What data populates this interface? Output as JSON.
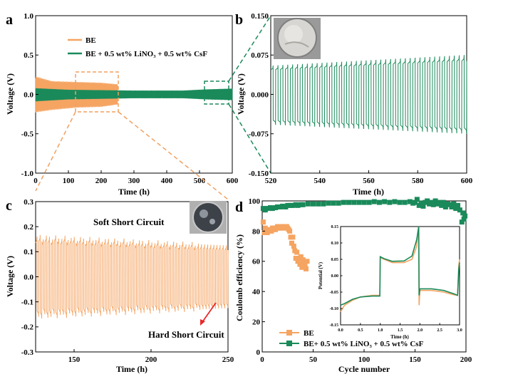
{
  "colors": {
    "be": "#f5a462",
    "add": "#1a8a5a",
    "axis": "#000000",
    "arrow": "#e8282a"
  },
  "figure": {
    "panel_a": {
      "label": "a",
      "icons": [
        "coin-photo-icon"
      ],
      "chart_data": {
        "type": "line",
        "xlabel": "Time (h)",
        "ylabel": "Voltage (V)",
        "xlim": [
          0,
          600
        ],
        "ylim": [
          -1.0,
          1.0
        ],
        "xticks": [
          "0",
          "100",
          "200",
          "300",
          "400",
          "500",
          "600"
        ],
        "yticks": [
          "-1.0",
          "-0.5",
          "0.0",
          "0.5",
          "1.0"
        ],
        "legend_position": "top-left",
        "series": [
          {
            "name": "BE",
            "color": "#f5a462",
            "x_range": [
              0,
              250
            ],
            "y_env": [
              [
                0,
                0.23,
                -0.23
              ],
              [
                50,
                0.17,
                -0.2
              ],
              [
                125,
                0.16,
                -0.17
              ],
              [
                200,
                0.15,
                -0.16
              ],
              [
                250,
                0.13,
                -0.13
              ]
            ]
          },
          {
            "name": "BE + 0.5 wt% LiNO₃ + 0.5 wt% CsF",
            "color": "#1a8a5a",
            "x_range": [
              0,
              600
            ],
            "y_env": [
              [
                0,
                0.08,
                -0.09
              ],
              [
                100,
                0.06,
                -0.065
              ],
              [
                300,
                0.05,
                -0.05
              ],
              [
                450,
                0.05,
                -0.05
              ],
              [
                520,
                0.065,
                -0.065
              ],
              [
                600,
                0.075,
                -0.075
              ]
            ]
          }
        ]
      }
    },
    "panel_b": {
      "label": "b",
      "chart_data": {
        "type": "line",
        "xlabel": "Time (h)",
        "ylabel": "Voltage (V)",
        "xlim": [
          520,
          600
        ],
        "ylim": [
          -0.15,
          0.15
        ],
        "xticks": [
          "520",
          "540",
          "560",
          "580",
          "600"
        ],
        "yticks": [
          "-0.150",
          "-0.075",
          "0.000",
          "0.075",
          "0.150"
        ],
        "series": [
          {
            "color": "#1a8a5a",
            "cycles": 40,
            "upper_start": 0.055,
            "upper_end": 0.075,
            "lower_start": -0.058,
            "lower_end": -0.075
          }
        ]
      }
    },
    "panel_c": {
      "label": "c",
      "annotations": {
        "soft": "Soft Short Circuit",
        "hard": "Hard Short Circuit"
      },
      "chart_data": {
        "type": "line",
        "xlabel": "Time (h)",
        "ylabel": "Voltage (V)",
        "xlim": [
          125,
          250
        ],
        "ylim": [
          -0.3,
          0.3
        ],
        "xticks": [
          "150",
          "200",
          "250"
        ],
        "yticks": [
          "-0.3",
          "-0.2",
          "-0.1",
          "0.0",
          "0.1",
          "0.2",
          "0.3"
        ],
        "series": [
          {
            "color": "#f5a462",
            "cycles": 62,
            "upper_start": 0.16,
            "upper_end": 0.125,
            "lower_start": -0.16,
            "lower_end": -0.125,
            "hard_short_x": 230
          }
        ]
      }
    },
    "panel_d": {
      "label": "d",
      "chart_data": {
        "type": "scatter",
        "xlabel": "Cycle number",
        "ylabel": "Coulomb efficiency (%)",
        "xlim": [
          0,
          200
        ],
        "ylim": [
          0,
          100
        ],
        "xticks": [
          "0",
          "50",
          "100",
          "150",
          "200"
        ],
        "yticks": [
          "0",
          "20",
          "40",
          "60",
          "80",
          "100"
        ],
        "legend_position": "bottom-left",
        "series": [
          {
            "name": "BE",
            "color": "#f5a462",
            "points": [
              [
                1,
                86
              ],
              [
                2,
                79
              ],
              [
                3,
                82
              ],
              [
                4,
                80
              ],
              [
                5,
                79
              ],
              [
                6,
                81
              ],
              [
                7,
                80
              ],
              [
                8,
                80
              ],
              [
                9,
                80
              ],
              [
                10,
                82
              ],
              [
                11,
                81
              ],
              [
                12,
                82
              ],
              [
                13,
                81
              ],
              [
                14,
                82
              ],
              [
                15,
                83
              ],
              [
                16,
                82
              ],
              [
                17,
                82
              ],
              [
                18,
                83
              ],
              [
                19,
                82
              ],
              [
                20,
                83
              ],
              [
                21,
                83
              ],
              [
                22,
                82
              ],
              [
                23,
                83
              ],
              [
                24,
                83
              ],
              [
                25,
                82
              ],
              [
                26,
                81
              ],
              [
                27,
                80
              ],
              [
                28,
                76
              ],
              [
                29,
                72
              ],
              [
                30,
                76
              ],
              [
                31,
                70
              ],
              [
                32,
                67
              ],
              [
                33,
                62
              ],
              [
                34,
                66
              ],
              [
                35,
                60
              ],
              [
                36,
                62
              ],
              [
                37,
                58
              ],
              [
                38,
                63
              ],
              [
                39,
                56
              ],
              [
                40,
                61
              ],
              [
                41,
                58
              ],
              [
                42,
                57
              ],
              [
                43,
                55
              ],
              [
                44,
                60
              ]
            ]
          },
          {
            "name": "BE+ 0.5 wt% LiNO₃ + 0.5 wt% CsF",
            "color": "#1a8a5a",
            "points": [
              [
                1,
                95
              ],
              [
                3,
                94
              ],
              [
                5,
                95
              ],
              [
                8,
                95.5
              ],
              [
                10,
                95
              ],
              [
                13,
                95.5
              ],
              [
                15,
                96
              ],
              [
                18,
                96
              ],
              [
                20,
                96.5
              ],
              [
                23,
                96
              ],
              [
                25,
                97
              ],
              [
                28,
                97
              ],
              [
                30,
                97
              ],
              [
                33,
                97.5
              ],
              [
                35,
                97
              ],
              [
                38,
                97.5
              ],
              [
                40,
                97.5
              ],
              [
                45,
                98
              ],
              [
                50,
                98
              ],
              [
                55,
                98
              ],
              [
                60,
                98
              ],
              [
                65,
                98.5
              ],
              [
                70,
                98.5
              ],
              [
                75,
                98.5
              ],
              [
                80,
                99
              ],
              [
                85,
                99
              ],
              [
                90,
                99
              ],
              [
                95,
                99
              ],
              [
                100,
                99
              ],
              [
                105,
                99
              ],
              [
                110,
                99.5
              ],
              [
                115,
                99
              ],
              [
                120,
                99.5
              ],
              [
                125,
                99
              ],
              [
                130,
                99.5
              ],
              [
                135,
                99
              ],
              [
                140,
                99
              ],
              [
                145,
                99.5
              ],
              [
                148,
                98.5
              ],
              [
                150,
                99
              ],
              [
                152,
                101
              ],
              [
                154,
                97
              ],
              [
                156,
                98.5
              ],
              [
                158,
                96.5
              ],
              [
                160,
                99
              ],
              [
                162,
                100
              ],
              [
                164,
                98
              ],
              [
                166,
                99
              ],
              [
                168,
                97.5
              ],
              [
                170,
                100
              ],
              [
                172,
                98
              ],
              [
                174,
                99
              ],
              [
                176,
                97
              ],
              [
                178,
                99
              ],
              [
                180,
                96
              ],
              [
                182,
                98
              ],
              [
                184,
                97.5
              ],
              [
                186,
                96
              ],
              [
                188,
                98
              ],
              [
                190,
                95
              ],
              [
                192,
                97
              ],
              [
                194,
                94
              ],
              [
                196,
                86
              ],
              [
                197,
                92
              ],
              [
                198,
                88
              ],
              [
                199,
                90
              ]
            ]
          }
        ]
      },
      "inset": {
        "chart_data": {
          "type": "line",
          "xlabel": "Time (h)",
          "ylabel": "Potential (V)",
          "xlim": [
            0,
            3.0
          ],
          "ylim": [
            -0.15,
            0.15
          ],
          "xticks": [
            "0.0",
            "0.5",
            "1.0",
            "1.5",
            "2.0",
            "2.5",
            "3.0"
          ],
          "yticks": [
            "-0.15",
            "-0.10",
            "-0.05",
            "0.00",
            "0.05",
            "0.10",
            "0.15"
          ],
          "series": [
            {
              "color": "#f5a462",
              "points": [
                [
                  0,
                  -0.11
                ],
                [
                  0.1,
                  -0.09
                ],
                [
                  0.3,
                  -0.075
                ],
                [
                  0.5,
                  -0.065
                ],
                [
                  0.8,
                  -0.06
                ],
                [
                  0.99,
                  -0.06
                ],
                [
                  1.0,
                  0.055
                ],
                [
                  1.1,
                  0.05
                ],
                [
                  1.3,
                  0.04
                ],
                [
                  1.6,
                  0.04
                ],
                [
                  1.8,
                  0.05
                ],
                [
                  1.92,
                  0.09
                ],
                [
                  1.97,
                  0.15
                ],
                [
                  1.98,
                  -0.09
                ],
                [
                  2.0,
                  -0.045
                ],
                [
                  2.3,
                  -0.045
                ],
                [
                  2.6,
                  -0.05
                ],
                [
                  2.85,
                  -0.058
                ],
                [
                  2.95,
                  -0.06
                ],
                [
                  2.98,
                  0.03
                ],
                [
                  3.0,
                  0.05
                ]
              ]
            },
            {
              "color": "#1a8a5a",
              "points": [
                [
                  0,
                  -0.09
                ],
                [
                  0.1,
                  -0.085
                ],
                [
                  0.3,
                  -0.072
                ],
                [
                  0.5,
                  -0.065
                ],
                [
                  0.8,
                  -0.062
                ],
                [
                  0.99,
                  -0.062
                ],
                [
                  1.0,
                  0.058
                ],
                [
                  1.1,
                  0.052
                ],
                [
                  1.3,
                  0.044
                ],
                [
                  1.6,
                  0.045
                ],
                [
                  1.8,
                  0.06
                ],
                [
                  1.92,
                  0.11
                ],
                [
                  1.97,
                  0.15
                ],
                [
                  1.98,
                  -0.06
                ],
                [
                  2.0,
                  -0.04
                ],
                [
                  2.3,
                  -0.04
                ],
                [
                  2.6,
                  -0.045
                ],
                [
                  2.85,
                  -0.055
                ],
                [
                  2.95,
                  -0.06
                ],
                [
                  2.98,
                  0.02
                ],
                [
                  3.0,
                  0.04
                ]
              ]
            }
          ]
        }
      }
    }
  }
}
